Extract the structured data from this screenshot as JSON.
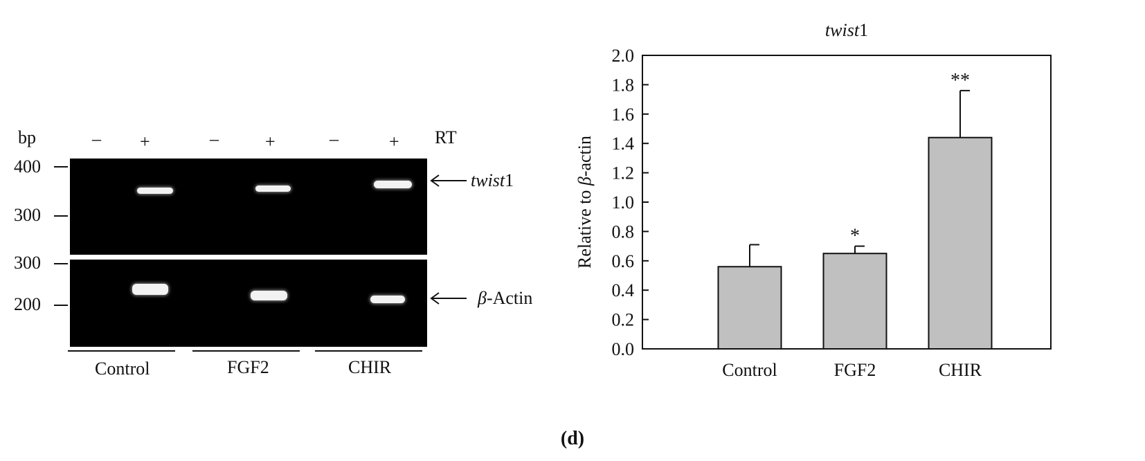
{
  "figure_label": "(d)",
  "gel": {
    "bp_label": "bp",
    "rt_label": "RT",
    "rt_marks": [
      "–",
      "+",
      "–",
      "+",
      "–",
      "+"
    ],
    "top_ladder": [
      "400",
      "300"
    ],
    "bottom_ladder": [
      "300",
      "200"
    ],
    "band_labels": {
      "twist": {
        "gene": "twist",
        "suffix": "1"
      },
      "actin": {
        "greek": "β",
        "suffix": "-Actin"
      }
    },
    "groups": [
      "Control",
      "FGF2",
      "CHIR"
    ]
  },
  "chart_data": {
    "type": "bar",
    "title": "twist1",
    "title_parts": {
      "italic": "twist",
      "plain": "1"
    },
    "categories": [
      "Control",
      "FGF2",
      "CHIR"
    ],
    "values": [
      0.56,
      0.65,
      1.44
    ],
    "errors": [
      0.15,
      0.05,
      0.32
    ],
    "significance": [
      "",
      "*",
      "**"
    ],
    "ylabel": "Relative to β-actin",
    "ylabel_parts": {
      "prefix": "Relative to ",
      "greek": "β",
      "suffix": "-actin"
    },
    "xlabel": "",
    "ylim": [
      0,
      2.0
    ],
    "yticks": [
      0.0,
      0.2,
      0.4,
      0.6,
      0.8,
      1.0,
      1.2,
      1.4,
      1.6,
      1.8,
      2.0
    ],
    "bar_color": "#c0c0c0",
    "grid": false,
    "legend": "none"
  }
}
